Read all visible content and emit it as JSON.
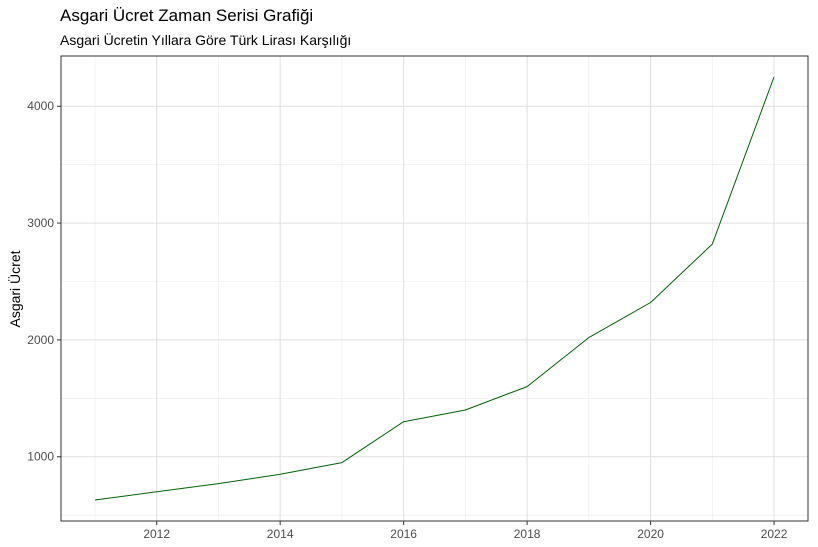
{
  "chart_data": {
    "type": "line",
    "title": "Asgari Ücret Zaman Serisi Grafiği",
    "subtitle": "Asgari Ücretin Yıllara Göre Türk Lirası Karşılığı",
    "xlabel": "",
    "ylabel": "Asgari Ücret",
    "x": [
      2011,
      2012,
      2013,
      2014,
      2015,
      2016,
      2017,
      2018,
      2019,
      2020,
      2021,
      2022
    ],
    "series": [
      {
        "values": [
          630,
          700,
          770,
          850,
          950,
          1300,
          1400,
          1600,
          2020,
          2320,
          2820,
          4250
        ]
      }
    ],
    "xlim": [
      2010.45,
      2022.55
    ],
    "ylim": [
      450,
      4430
    ],
    "x_ticks": [
      2012,
      2014,
      2016,
      2018,
      2020,
      2022
    ],
    "y_ticks": [
      1000,
      2000,
      3000,
      4000
    ],
    "line_color": "#006400",
    "grid": true,
    "legend": "none"
  }
}
